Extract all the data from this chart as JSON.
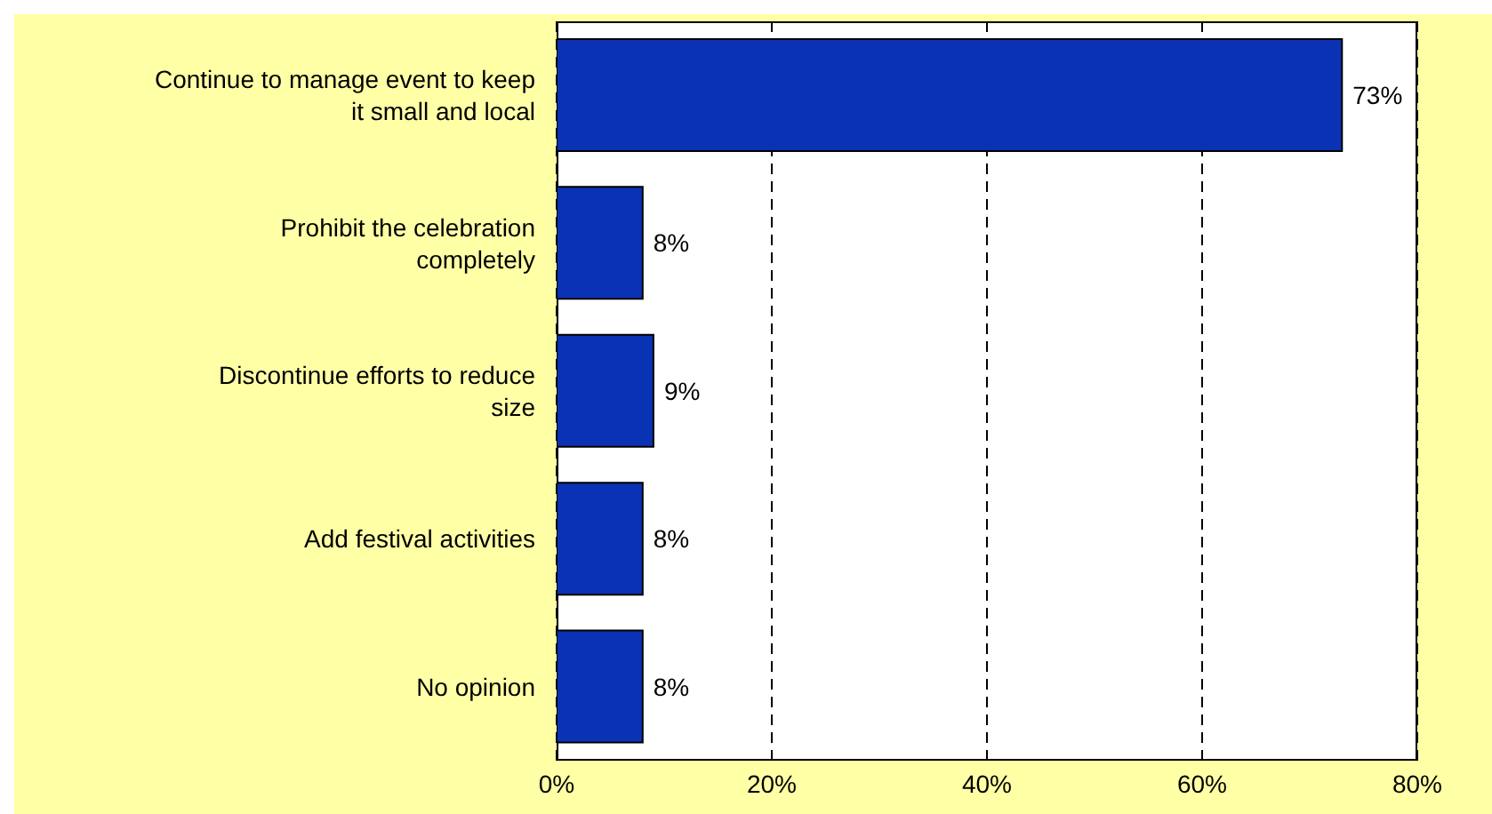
{
  "chart_data": {
    "type": "bar",
    "orientation": "horizontal",
    "categories": [
      "Continue to manage event to keep it small and local",
      "Prohibit the celebration completely",
      "Discontinue efforts to reduce size",
      "Add festival activities",
      "No opinion"
    ],
    "values": [
      73,
      8,
      9,
      8,
      8
    ],
    "color": "#0a32b4",
    "value_labels": [
      "73%",
      "8%",
      "9%",
      "8%",
      "8%"
    ],
    "xlim": [
      0,
      80
    ],
    "xticks": [
      {
        "value": 0,
        "label": "0%"
      },
      {
        "value": 20,
        "label": "20%"
      },
      {
        "value": 40,
        "label": "40%"
      },
      {
        "value": 60,
        "label": "60%"
      },
      {
        "value": 80,
        "label": "80%"
      }
    ],
    "grid": "x"
  }
}
